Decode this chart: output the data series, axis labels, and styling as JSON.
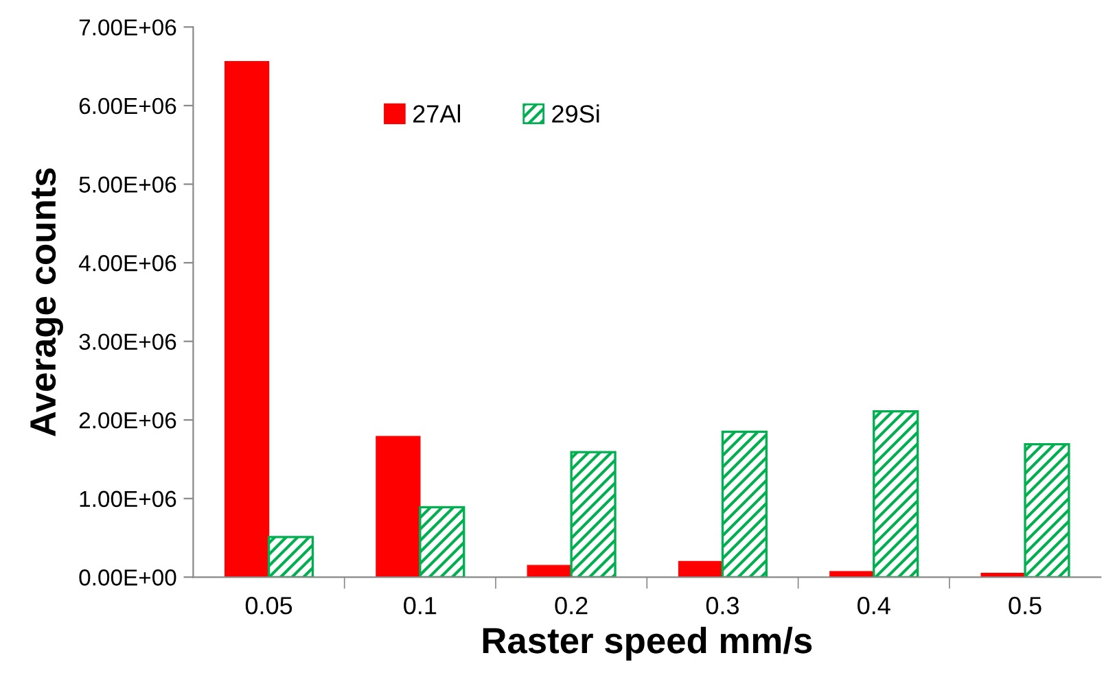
{
  "chart_data": {
    "type": "bar",
    "xlabel": "Raster speed mm/s",
    "ylabel": "Average counts",
    "categories": [
      "0.05",
      "0.1",
      "0.2",
      "0.3",
      "0.4",
      "0.5"
    ],
    "series": [
      {
        "name": "27Al",
        "color": "#ff0000",
        "values": [
          6560000,
          1790000,
          150000,
          200000,
          70000,
          50000
        ]
      },
      {
        "name": "29Si",
        "color": "#00b050",
        "values": [
          510000,
          890000,
          1590000,
          1850000,
          2110000,
          1690000
        ]
      }
    ],
    "ylim": [
      0,
      7000000
    ],
    "yticks": [
      {
        "value": 0,
        "label": "0.00E+00"
      },
      {
        "value": 1000000,
        "label": "1.00E+06"
      },
      {
        "value": 2000000,
        "label": "2.00E+06"
      },
      {
        "value": 3000000,
        "label": "3.00E+06"
      },
      {
        "value": 4000000,
        "label": "4.00E+06"
      },
      {
        "value": 5000000,
        "label": "5.00E+06"
      },
      {
        "value": 6000000,
        "label": "6.00E+06"
      },
      {
        "value": 7000000,
        "label": "7.00E+06"
      }
    ],
    "grid": false,
    "legend": "top"
  }
}
